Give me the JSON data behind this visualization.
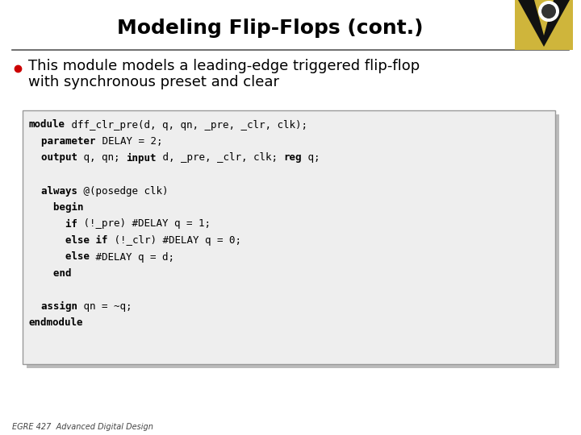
{
  "title": "Modeling Flip-Flops (cont.)",
  "title_fontsize": 18,
  "title_fontweight": "bold",
  "bullet_text_line1": "This module models a leading-edge triggered flip-flop",
  "bullet_text_line2": "with synchronous preset and clear",
  "bullet_fontsize": 13,
  "bullet_color": "#cc0000",
  "background_color": "#ffffff",
  "code_box_bg": "#eeeeee",
  "code_box_border": "#999999",
  "shadow_color": "#bbbbbb",
  "footer_text": "EGRE 427  Advanced Digital Design",
  "footer_fontsize": 7,
  "code_fontsize": 9.0,
  "separator_color": "#555555",
  "logo_color_gold": "#CFB53B",
  "logo_color_black": "#111111",
  "code_content": [
    [
      [
        "module",
        true
      ],
      [
        " dff_clr_pre(d, q, qn, _pre, _clr, clk);",
        false
      ]
    ],
    [
      [
        "  parameter",
        true
      ],
      [
        " DELAY = 2;",
        false
      ]
    ],
    [
      [
        "  output",
        true
      ],
      [
        " q, qn; ",
        false
      ],
      [
        "input",
        true
      ],
      [
        " d, _pre, _clr, clk; ",
        false
      ],
      [
        "reg",
        true
      ],
      [
        " q;",
        false
      ]
    ],
    [
      [
        "",
        false
      ]
    ],
    [
      [
        "  always",
        true
      ],
      [
        " @(posedge clk)",
        false
      ]
    ],
    [
      [
        "    begin",
        true
      ]
    ],
    [
      [
        "      if",
        true
      ],
      [
        " (!_pre) #DELAY q = 1;",
        false
      ]
    ],
    [
      [
        "      else if",
        true
      ],
      [
        " (!_clr) #DELAY q = 0;",
        false
      ]
    ],
    [
      [
        "      else",
        true
      ],
      [
        " #DELAY q = d;",
        false
      ]
    ],
    [
      [
        "    end",
        true
      ]
    ],
    [
      [
        "",
        false
      ]
    ],
    [
      [
        "  assign",
        true
      ],
      [
        " qn = ~q;",
        false
      ]
    ],
    [
      [
        "endmodule",
        true
      ]
    ]
  ]
}
